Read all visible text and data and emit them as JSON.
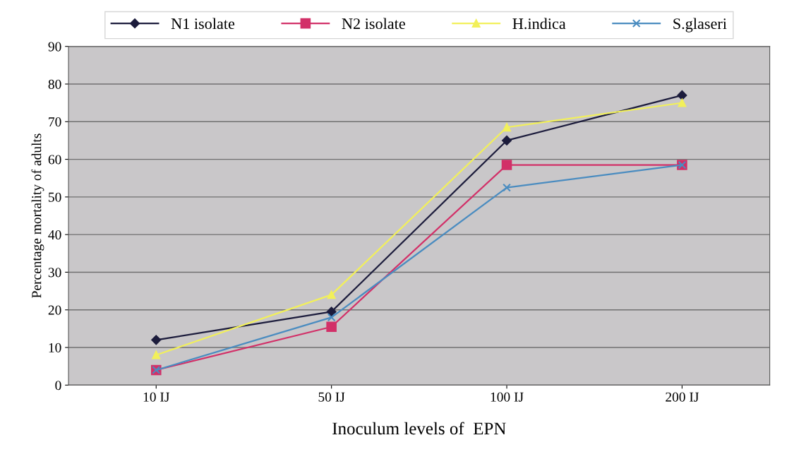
{
  "chart_data": {
    "type": "line",
    "xlabel": "Inoculum levels of  EPN",
    "ylabel": "Percentage mortality of adults",
    "categories": [
      "10 IJ",
      "50 IJ",
      "100 IJ",
      "200 IJ"
    ],
    "series": [
      {
        "name": "N1 isolate",
        "color": "#1c1c3c",
        "marker": "diamond",
        "values": [
          12,
          19.5,
          65,
          77
        ]
      },
      {
        "name": "N2 isolate",
        "color": "#d23068",
        "marker": "square",
        "values": [
          4,
          15.5,
          58.5,
          58.5
        ]
      },
      {
        "name": "H.indica",
        "color": "#f2f05a",
        "marker": "triangle",
        "values": [
          8,
          24,
          68.5,
          75
        ]
      },
      {
        "name": "S.glaseri",
        "color": "#4a8cc0",
        "marker": "cross",
        "values": [
          4,
          18,
          52.5,
          58.5
        ]
      }
    ],
    "ylim": [
      0,
      90
    ],
    "yticks": [
      0,
      10,
      20,
      30,
      40,
      50,
      60,
      70,
      80,
      90
    ],
    "grid": "y",
    "legend": "top"
  }
}
